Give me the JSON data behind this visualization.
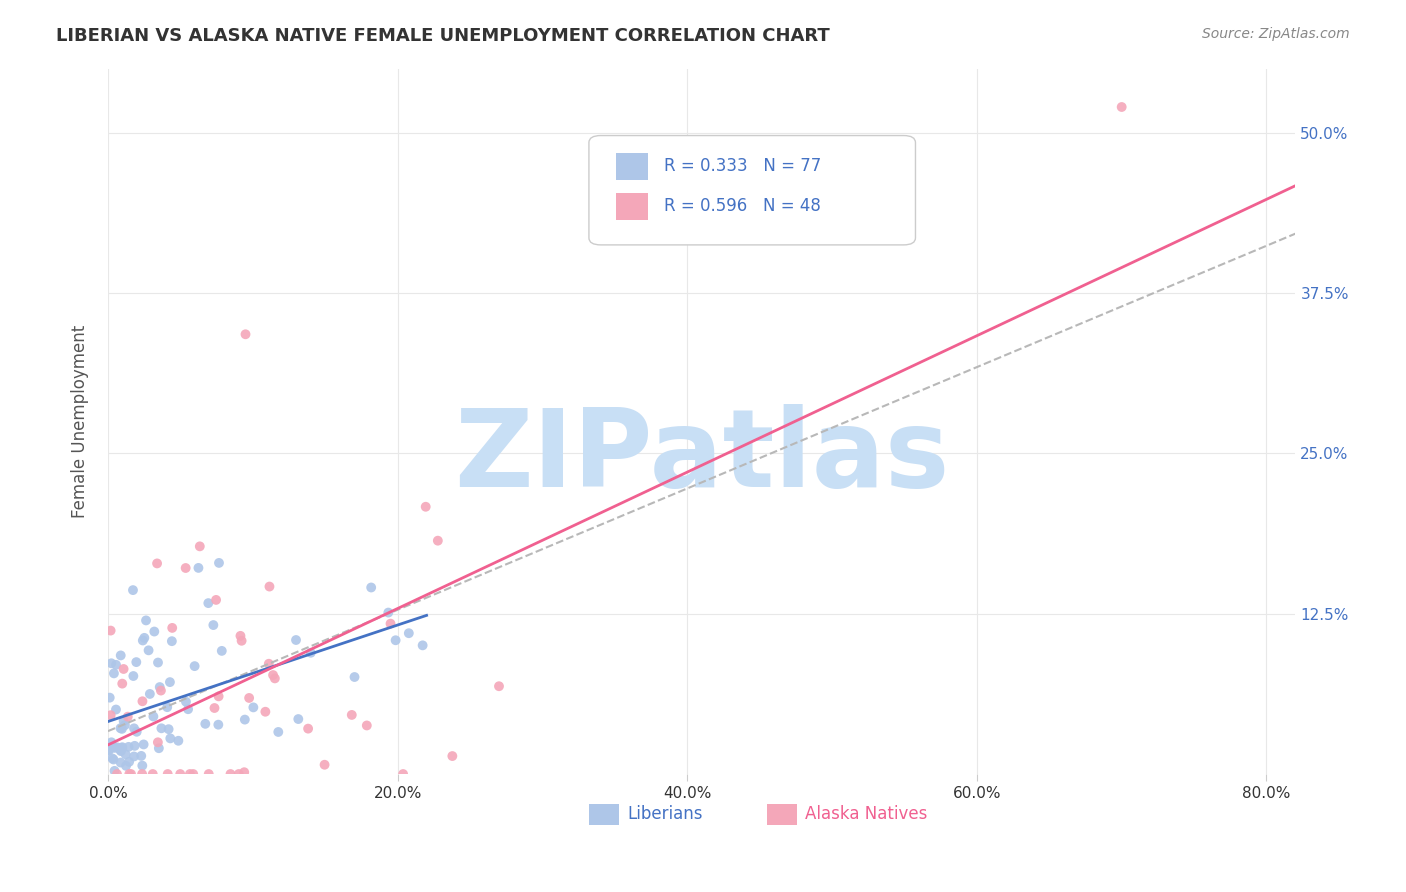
{
  "title": "LIBERIAN VS ALASKA NATIVE FEMALE UNEMPLOYMENT CORRELATION CHART",
  "source": "Source: ZipAtlas.com",
  "xlabel_ticks": [
    "0.0%",
    "20.0%",
    "40.0%",
    "60.0%",
    "80.0%"
  ],
  "xlabel_vals": [
    0.0,
    0.2,
    0.4,
    0.6,
    0.8
  ],
  "ylabel_ticks": [
    "12.5%",
    "25.0%",
    "37.5%",
    "50.0%"
  ],
  "ylabel_vals": [
    0.125,
    0.25,
    0.375,
    0.5
  ],
  "ylabel_label": "Female Unemployment",
  "legend_labels": [
    "Liberians",
    "Alaska Natives"
  ],
  "legend_r": [
    0.333,
    0.596
  ],
  "legend_n": [
    77,
    48
  ],
  "liberian_color": "#aec6e8",
  "alaska_color": "#f4a7b9",
  "liberian_line_color": "#4472c4",
  "alaska_line_color": "#f06090",
  "dashed_line_color": "#b8b8b8",
  "watermark": "ZIPatlas",
  "watermark_color": "#c8dff5",
  "background_color": "#ffffff",
  "xlim": [
    0.0,
    0.82
  ],
  "ylim": [
    0.0,
    0.55
  ],
  "tick_label_color_x": "#333333",
  "tick_label_color_y": "#4472c4",
  "ylabel_color": "#555555",
  "title_color": "#333333",
  "source_color": "#888888",
  "legend_edge_color": "#cccccc",
  "grid_color": "#e8e8e8"
}
